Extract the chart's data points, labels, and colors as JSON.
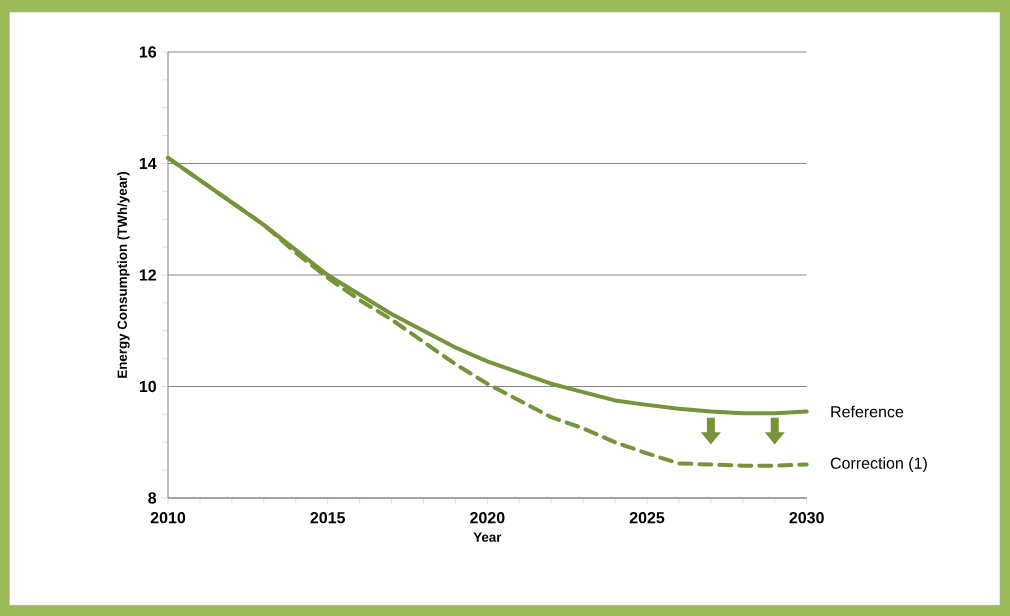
{
  "chart_data": {
    "type": "line",
    "xlabel": "Year",
    "ylabel": "Energy Consumption (TWh/year)",
    "x": [
      2010,
      2011,
      2012,
      2013,
      2014,
      2015,
      2016,
      2017,
      2018,
      2019,
      2020,
      2021,
      2022,
      2023,
      2024,
      2025,
      2026,
      2027,
      2028,
      2029,
      2030
    ],
    "series": [
      {
        "name": "Reference",
        "color": "#77933c",
        "line_style": "solid",
        "values": [
          14.1,
          13.7,
          13.3,
          12.9,
          12.45,
          12.0,
          11.65,
          11.3,
          11.0,
          10.7,
          10.45,
          10.25,
          10.05,
          9.9,
          9.75,
          9.67,
          9.6,
          9.55,
          9.52,
          9.52,
          9.55
        ]
      },
      {
        "name": "Correction (1)",
        "color": "#77933c",
        "line_style": "dashed",
        "values": [
          14.1,
          13.7,
          13.3,
          12.9,
          12.4,
          11.95,
          11.55,
          11.2,
          10.8,
          10.4,
          10.05,
          9.75,
          9.45,
          9.25,
          9.0,
          8.8,
          8.62,
          8.6,
          8.58,
          8.58,
          8.6
        ]
      }
    ],
    "xlim": [
      2010,
      2030
    ],
    "xticks": [
      2010,
      2015,
      2020,
      2025,
      2030
    ],
    "ylim": [
      8,
      16
    ],
    "yticks": [
      8,
      10,
      12,
      14,
      16
    ],
    "grid": "y",
    "legend": false,
    "marker": "none"
  }
}
